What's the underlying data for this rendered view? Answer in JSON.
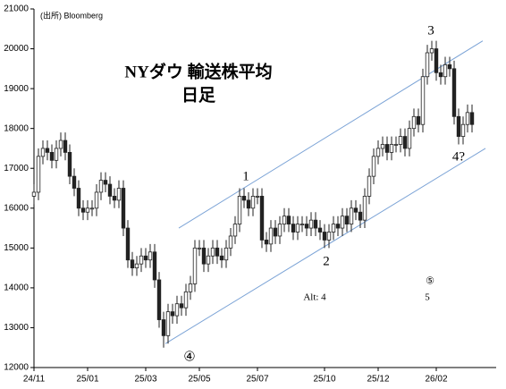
{
  "chart_data": {
    "type": "candlestick",
    "source": "(出所) Bloomberg",
    "title": "NYダウ 輸送株平均",
    "subtitle": "日足",
    "categories": [
      "24/11",
      null,
      null,
      null,
      null,
      null,
      null,
      null,
      null,
      null,
      null,
      null,
      "25/01",
      null,
      null,
      null,
      null,
      null,
      null,
      null,
      null,
      null,
      null,
      null,
      null,
      "25/03",
      null,
      null,
      null,
      null,
      null,
      null,
      null,
      null,
      null,
      null,
      null,
      "25/05",
      null,
      null,
      null,
      null,
      null,
      null,
      null,
      null,
      null,
      null,
      null,
      null,
      "25/07",
      null,
      null,
      null,
      null,
      null,
      null,
      null,
      null,
      null,
      null,
      null,
      null,
      null,
      null,
      "25/10",
      null,
      null,
      null,
      null,
      null,
      null,
      null,
      null,
      null,
      null,
      null,
      "25/12",
      null,
      null,
      null,
      null,
      null,
      null,
      null,
      null,
      null,
      null,
      null,
      null,
      "26/02",
      null,
      null,
      null,
      null,
      null,
      null,
      null,
      null
    ],
    "open": [
      16300,
      16400,
      17300,
      17500,
      17400,
      17200,
      17500,
      17700,
      17400,
      16800,
      16500,
      16000,
      15900,
      16000,
      16000,
      16400,
      16700,
      16600,
      16300,
      16200,
      16500,
      15500,
      14700,
      14500,
      14600,
      14800,
      14700,
      14900,
      14200,
      13200,
      12800,
      13400,
      13300,
      13600,
      13500,
      13900,
      14100,
      15000,
      15000,
      14600,
      14800,
      15000,
      14800,
      14700,
      15000,
      15300,
      15600,
      16300,
      16200,
      16000,
      16300,
      16300,
      15200,
      15100,
      15500,
      15300,
      15600,
      15800,
      15600,
      15400,
      15600,
      15600,
      15500,
      15700,
      15500,
      15400,
      15200,
      15400,
      15600,
      15500,
      15800,
      15600,
      16000,
      15900,
      15700,
      16300,
      16800,
      17300,
      17500,
      17600,
      17400,
      17600,
      17600,
      17800,
      17500,
      18000,
      18300,
      18100,
      19300,
      19900,
      20000,
      19400,
      19300,
      19600,
      19500,
      18300,
      17800,
      18100,
      18400
    ],
    "high": [
      16600,
      17500,
      17700,
      17700,
      17600,
      17700,
      17900,
      17900,
      17600,
      17000,
      16700,
      16200,
      16200,
      16200,
      16600,
      16900,
      16900,
      16800,
      16500,
      16700,
      16700,
      15700,
      14900,
      14800,
      15000,
      15000,
      15100,
      15100,
      14400,
      13400,
      13600,
      13600,
      13800,
      13800,
      14100,
      14300,
      15200,
      15200,
      15200,
      15000,
      15200,
      15200,
      15000,
      15200,
      15500,
      15800,
      16500,
      16500,
      16400,
      16500,
      16500,
      16500,
      15400,
      15700,
      15700,
      15800,
      16000,
      16000,
      15800,
      15800,
      15800,
      15800,
      15900,
      15900,
      15700,
      15600,
      15600,
      15800,
      15800,
      16000,
      16000,
      16200,
      16200,
      16100,
      16500,
      17000,
      17500,
      17700,
      17800,
      17800,
      17800,
      17800,
      18000,
      18000,
      18200,
      18500,
      18500,
      19500,
      20100,
      20200,
      20200,
      19600,
      19800,
      19800,
      19700,
      18500,
      18300,
      18600,
      18600
    ],
    "low": [
      16100,
      16200,
      17100,
      17200,
      17000,
      17000,
      17300,
      17200,
      16600,
      16300,
      15800,
      15700,
      15700,
      15800,
      15800,
      16200,
      16400,
      16100,
      16000,
      16000,
      15300,
      14500,
      14300,
      14300,
      14400,
      14500,
      14500,
      14000,
      13000,
      12500,
      12600,
      13100,
      13100,
      13300,
      13300,
      13700,
      13900,
      14800,
      14400,
      14400,
      14600,
      14600,
      14500,
      14500,
      14800,
      15100,
      15400,
      16000,
      15800,
      15800,
      16100,
      15000,
      14900,
      14900,
      15100,
      15100,
      15400,
      15400,
      15200,
      15200,
      15400,
      15300,
      15300,
      15300,
      15200,
      15000,
      15000,
      15200,
      15300,
      15300,
      15400,
      15400,
      15700,
      15500,
      15500,
      16100,
      16600,
      17100,
      17300,
      17200,
      17200,
      17400,
      17400,
      17300,
      17300,
      17800,
      17900,
      17900,
      19100,
      19700,
      19200,
      19100,
      19100,
      19300,
      18100,
      17600,
      17600,
      17900,
      17900
    ],
    "close": [
      16400,
      17300,
      17500,
      17400,
      17200,
      17500,
      17700,
      17400,
      16800,
      16500,
      16000,
      15900,
      16000,
      16000,
      16400,
      16700,
      16600,
      16300,
      16200,
      16500,
      15500,
      14700,
      14500,
      14600,
      14800,
      14700,
      14900,
      14200,
      13200,
      12800,
      13400,
      13300,
      13600,
      13500,
      13900,
      14100,
      15000,
      15000,
      14600,
      14800,
      15000,
      14800,
      14700,
      15000,
      15300,
      15600,
      16300,
      16200,
      16000,
      16300,
      16300,
      15200,
      15100,
      15500,
      15300,
      15600,
      15800,
      15600,
      15400,
      15600,
      15600,
      15500,
      15700,
      15500,
      15400,
      15200,
      15400,
      15600,
      15500,
      15800,
      15600,
      16000,
      15900,
      15700,
      16300,
      16800,
      17300,
      17500,
      17600,
      17400,
      17600,
      17600,
      17800,
      17500,
      18000,
      18300,
      18100,
      19300,
      19900,
      20000,
      19400,
      19300,
      19600,
      19500,
      18300,
      17800,
      18100,
      18400,
      18100
    ],
    "ylim": [
      12000,
      21000
    ],
    "yticks": [
      12000,
      13000,
      14000,
      15000,
      16000,
      17000,
      18000,
      19000,
      20000,
      21000
    ],
    "channels": [
      {
        "color": "#7ba3d6",
        "x": [
          32.4,
          100.4
        ],
        "y": [
          15500,
          20200
        ]
      },
      {
        "color": "#7ba3d6",
        "x": [
          29.4,
          101
        ],
        "y": [
          12600,
          17500
        ]
      }
    ],
    "annotations": [
      "1",
      "2",
      "3",
      "4?",
      "④",
      "⑤",
      "5",
      "Alt: 4"
    ]
  }
}
